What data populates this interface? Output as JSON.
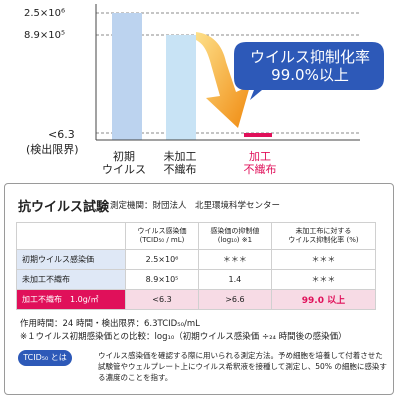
{
  "chart_data": {
    "type": "bar",
    "categories": [
      "初期\nウイルス",
      "未加工\n不織布",
      "加工\n不織布"
    ],
    "values": [
      2500000,
      890000,
      6.3
    ],
    "bar_colors": [
      "#bcd3ef",
      "#c8e3f5",
      "#e0105a"
    ],
    "category_label_colors": [
      "#222222",
      "#222222",
      "#e0105a"
    ],
    "yticks": [
      {
        "label": "2.5×10⁶",
        "value": 2500000
      },
      {
        "label": "8.9×10⁵",
        "value": 890000
      },
      {
        "label": "<6.3",
        "value": 6.3
      }
    ],
    "ylabel_extra": "(検出限界)",
    "grid": "dashed horizontal at tick values",
    "annotation": {
      "line1": "ウイルス抑制化率",
      "line2": "99.0%以上",
      "color": "#2d59b8",
      "arrow_color": "#f39c1e"
    }
  },
  "panel": {
    "title": "抗ウイルス試験",
    "org": "測定機関：財団法人　北里環境科学センター",
    "headers": [
      "",
      "ウイルス感染価\n(TCID₅₀ / mL)",
      "感染価の抑制値\n(log₁₀) ※1",
      "未加工布に対する\nウイルス抑制化率 (%)"
    ],
    "rows": [
      {
        "label": "初期ウイルス感染価",
        "c1": "2.5×10⁶",
        "c2": "＊＊＊",
        "c3": "＊＊＊",
        "highlight": false
      },
      {
        "label": "未加工不織布",
        "c1": "8.9×10⁵",
        "c2": "1.4",
        "c3": "＊＊＊",
        "highlight": false
      },
      {
        "label": "加工不織布　1.0g/㎡",
        "c1": "<6.3",
        "c2": ">6.6",
        "c3": "99.0 以上",
        "highlight": true
      }
    ],
    "note1": "作用時間：24 時間・検出限界：6.3TCID₅₀/mL",
    "note2": "※１ウイルス初期感染価との比較：log₁₀（初期ウイルス感染価 ÷₂₄ 時間後の感染価）",
    "tcid_badge": "TCID₅₀ とは",
    "explanation": "ウイルス感染価を確認する際に用いられる測定方法。予め細胞を培養して付着させた試験管やウェルプレート上にウイルス希釈液を接種して測定し、50% の細胞に感染する濃度のことを指す。"
  }
}
